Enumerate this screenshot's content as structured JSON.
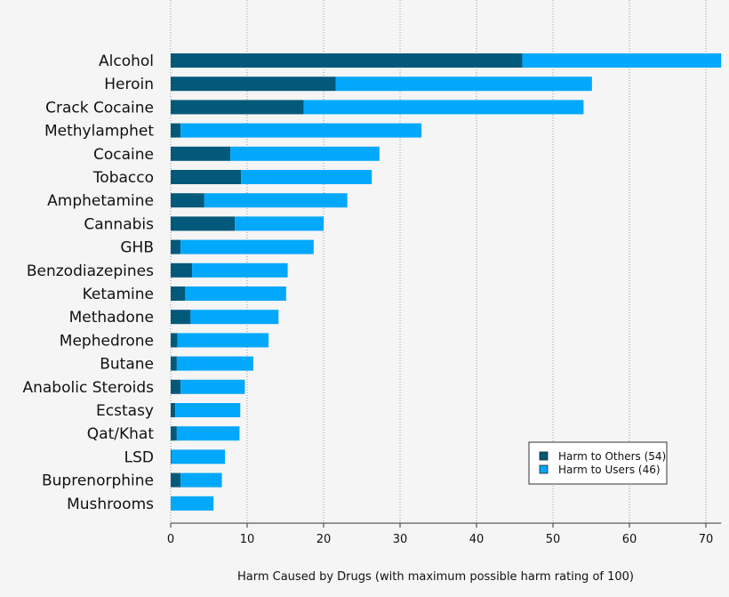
{
  "chart_data": {
    "type": "bar",
    "orientation": "horizontal",
    "stacked": true,
    "categories": [
      "Alcohol",
      "Heroin",
      "Crack Cocaine",
      "Methylamphet",
      "Cocaine",
      "Tobacco",
      "Amphetamine",
      "Cannabis",
      "GHB",
      "Benzodiazepines",
      "Ketamine",
      "Methadone",
      "Mephedrone",
      "Butane",
      "Anabolic Steroids",
      "Ecstasy",
      "Qat/Khat",
      "LSD",
      "Buprenorphine",
      "Mushrooms"
    ],
    "series": [
      {
        "name": "Harm to Others (54)",
        "color": "#03597a",
        "values": [
          46,
          21.6,
          17.4,
          1.3,
          7.8,
          9.2,
          4.4,
          8.4,
          1.3,
          2.8,
          1.9,
          2.6,
          0.9,
          0.8,
          1.3,
          0.6,
          0.8,
          0.1,
          1.3,
          0
        ]
      },
      {
        "name": "Harm to Users (46)",
        "color": "#02a8fb",
        "values": [
          26,
          33.5,
          36.6,
          31.5,
          19.5,
          17.1,
          18.7,
          11.6,
          17.4,
          12.5,
          13.2,
          11.5,
          11.9,
          10,
          8.4,
          8.5,
          8.2,
          7,
          5.4,
          5.6
        ]
      }
    ],
    "xlabel": "Harm Caused by Drugs (with maximum possible harm rating of 100)",
    "xlim": [
      0,
      72
    ],
    "xticks": [
      "0",
      "10",
      "20",
      "30",
      "40",
      "50",
      "60",
      "70"
    ],
    "grid": "vertical dotted",
    "legend": "bottom-right"
  }
}
